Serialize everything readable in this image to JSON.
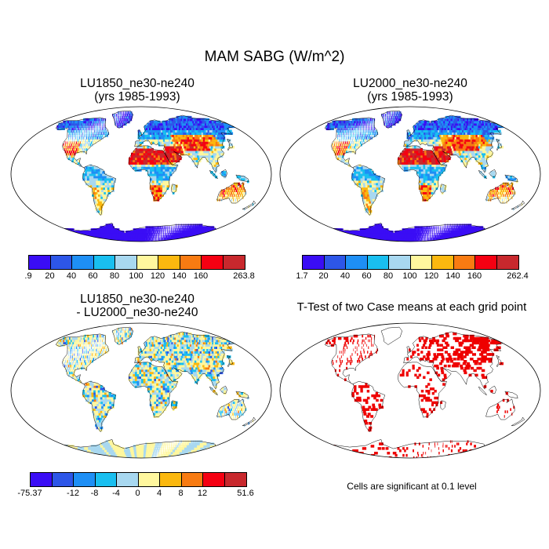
{
  "figure": {
    "title": "MAM SABG (W/m^2)",
    "panel1_title": [
      "LU1850_ne30-ne240",
      "(yrs 1985-1993)"
    ],
    "panel2_title": [
      "LU2000_ne30-ne240",
      "(yrs 1985-1993)"
    ],
    "panel3_title": [
      "LU1850_ne30-ne240",
      "- LU2000_ne30-ne240"
    ],
    "panel4_title": "T-Test of two Case means at each grid point",
    "significance_note": "Cells are significant at 0.1 level"
  },
  "colorbars": {
    "abs_colors": [
      "#3a0df5",
      "#2d56e8",
      "#1e8ff5",
      "#19bff0",
      "#a8d8f0",
      "#fff79e",
      "#fbb80f",
      "#f87b12",
      "#f50012",
      "#c8282d"
    ],
    "diff_colors": [
      "#3a0df5",
      "#2d56e8",
      "#1e8ff5",
      "#19bff0",
      "#a8d8f0",
      "#fff79e",
      "#fbb80f",
      "#f87b12",
      "#f50012",
      "#c8282d"
    ],
    "panel1_labels": [
      ".9",
      "20",
      "40",
      "60",
      "80",
      "100",
      "120",
      "140",
      "160",
      "263.8"
    ],
    "panel2_labels": [
      "1.7",
      "20",
      "40",
      "60",
      "80",
      "100",
      "120",
      "140",
      "160",
      "262.4"
    ],
    "panel3_labels": [
      "-75.37",
      "-12",
      "-8",
      "-4",
      "0",
      "4",
      "8",
      "12",
      "51.6"
    ]
  },
  "chart_data": [
    {
      "type": "heatmap",
      "title": "LU1850_ne30-ne240 (yrs 1985-1993)",
      "variable": "MAM SABG",
      "units": "W/m^2",
      "range": [
        0.9,
        263.8
      ],
      "levels": [
        20,
        40,
        60,
        80,
        100,
        120,
        140,
        160
      ]
    },
    {
      "type": "heatmap",
      "title": "LU2000_ne30-ne240 (yrs 1985-1993)",
      "variable": "MAM SABG",
      "units": "W/m^2",
      "range": [
        1.7,
        262.4
      ],
      "levels": [
        20,
        40,
        60,
        80,
        100,
        120,
        140,
        160
      ]
    },
    {
      "type": "heatmap",
      "title": "LU1850_ne30-ne240 - LU2000_ne30-ne240",
      "variable": "MAM SABG difference",
      "units": "W/m^2",
      "range": [
        -75.37,
        51.6
      ],
      "levels": [
        -12,
        -8,
        -4,
        0,
        4,
        8,
        12
      ]
    },
    {
      "type": "heatmap",
      "title": "T-Test of two Case means at each grid point",
      "note": "Cells are significant at 0.1 level",
      "color": "#ee0000"
    }
  ]
}
